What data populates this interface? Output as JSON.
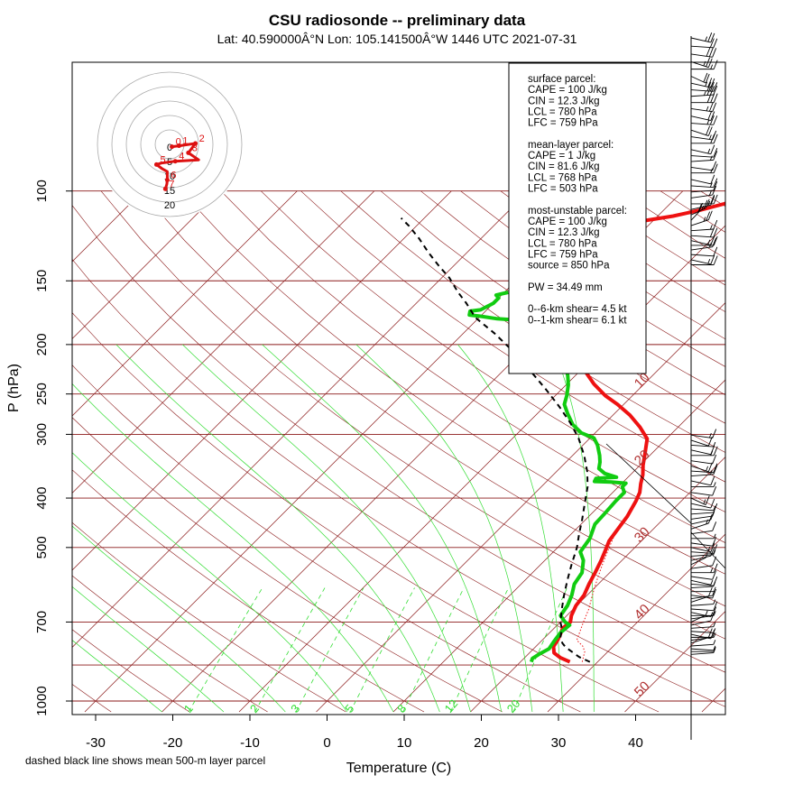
{
  "header": {
    "title": "CSU radiosonde -- preliminary data",
    "subtitle": "Lat: 40.590000Â°N Lon: 105.141500Â°W    1446 UTC  2021-07-31"
  },
  "footnote": "dashed black line shows mean 500-m layer parcel",
  "info_box": {
    "lines": [
      "surface parcel:",
      "CAPE = 100 J/kg",
      "CIN = 12.3 J/kg",
      "LCL = 780 hPa",
      "LFC = 759 hPa",
      "",
      "mean-layer parcel:",
      "CAPE = 1 J/kg",
      "CIN = 81.6 J/kg",
      "LCL = 768 hPa",
      "LFC = 503 hPa",
      "",
      "most-unstable parcel:",
      "CAPE = 100 J/kg",
      "CIN = 12.3 J/kg",
      "LCL = 780 hPa",
      "LFC = 759 hPa",
      "source = 850 hPa",
      "",
      "PW =  34.49 mm",
      "",
      "0--6-km shear= 4.5 kt",
      "0--1-km shear= 6.1 kt"
    ]
  },
  "colors": {
    "isobar": "#8b1a1a",
    "isotherm": "#8b1a1a",
    "dry_adiabat": "#ee3333",
    "moist_adiabat": "#33dd33",
    "temperature": "#ee1111",
    "dewpoint": "#11cc11",
    "parcel": "#000000",
    "hodograph": "#dd1111"
  },
  "chart_data": {
    "type": "skew-t",
    "xlabel": "Temperature (C)",
    "ylabel": "P (hPa)",
    "x_ticks": [
      -30,
      -20,
      -10,
      0,
      10,
      20,
      30,
      40
    ],
    "xlim": [
      -33,
      46
    ],
    "y_scale": "log",
    "ylim": [
      1050,
      100
    ],
    "p_tick_labels": [
      1000,
      700,
      500,
      400,
      300,
      250,
      200,
      150,
      100
    ],
    "isobars": [
      1000,
      850,
      700,
      500,
      400,
      300,
      250,
      200,
      150,
      100
    ],
    "isotherm_labels": [
      0,
      10,
      20,
      30,
      40,
      50
    ],
    "mixing_ratio_labels": [
      "1",
      "2",
      "3",
      "5",
      "8",
      "12",
      "20"
    ],
    "series": [
      {
        "key": "temperature",
        "points": [
          [
            26.4,
            838
          ],
          [
            24.6,
            822
          ],
          [
            23.2,
            805
          ],
          [
            22.3,
            782
          ],
          [
            22.0,
            760
          ],
          [
            21.6,
            740
          ],
          [
            21.1,
            720
          ],
          [
            21.3,
            700
          ],
          [
            20.6,
            680
          ],
          [
            19.9,
            650
          ],
          [
            19.6,
            620
          ],
          [
            18.8,
            590
          ],
          [
            18.1,
            560
          ],
          [
            17.3,
            530
          ],
          [
            16.5,
            505
          ],
          [
            15.8,
            485
          ],
          [
            15.4,
            460
          ],
          [
            15.0,
            435
          ],
          [
            14.1,
            405
          ],
          [
            13.5,
            390
          ],
          [
            12.5,
            375
          ],
          [
            11.6,
            360
          ],
          [
            10.4,
            345
          ],
          [
            9.2,
            328
          ],
          [
            7.5,
            306
          ],
          [
            5.0,
            290
          ],
          [
            2.2,
            275
          ],
          [
            -0.8,
            262
          ],
          [
            -3.5,
            252
          ],
          [
            -6.5,
            239
          ],
          [
            -9.0,
            227
          ],
          [
            -11.6,
            217
          ],
          [
            -14.0,
            207
          ],
          [
            -15.0,
            195
          ],
          [
            -16.8,
            186
          ],
          [
            -17.8,
            174
          ],
          [
            -18.6,
            166
          ],
          [
            -19.6,
            157
          ],
          [
            -20.0,
            150
          ],
          [
            -20.4,
            145
          ],
          [
            -21.0,
            140
          ],
          [
            -21.7,
            135
          ],
          [
            -22.4,
            130
          ],
          [
            -23.0,
            125
          ],
          [
            -23.5,
            120
          ],
          [
            -22.9,
            116
          ],
          [
            -20.7,
            114
          ],
          [
            -18.0,
            112
          ],
          [
            -15.3,
            109
          ],
          [
            -13.0,
            106
          ],
          [
            -11.0,
            103
          ],
          [
            -9.5,
            100
          ]
        ]
      },
      {
        "key": "dewpoint",
        "points": [
          [
            21.4,
            838
          ],
          [
            21.1,
            825
          ],
          [
            21.4,
            810
          ],
          [
            22.0,
            790
          ],
          [
            21.7,
            765
          ],
          [
            21.4,
            735
          ],
          [
            21.6,
            710
          ],
          [
            20.6,
            700
          ],
          [
            19.2,
            680
          ],
          [
            18.8,
            650
          ],
          [
            18.0,
            620
          ],
          [
            16.9,
            590
          ],
          [
            16.4,
            560
          ],
          [
            15.0,
            530
          ],
          [
            13.5,
            510
          ],
          [
            13.0,
            480
          ],
          [
            11.8,
            450
          ],
          [
            11.7,
            430
          ],
          [
            11.5,
            405
          ],
          [
            11.5,
            390
          ],
          [
            10.5,
            380
          ],
          [
            10.5,
            374
          ],
          [
            8.4,
            372
          ],
          [
            6.2,
            371
          ],
          [
            6.0,
            366
          ],
          [
            8.5,
            364
          ],
          [
            6.5,
            358
          ],
          [
            5.1,
            350
          ],
          [
            4.4,
            340
          ],
          [
            3.5,
            330
          ],
          [
            1.9,
            315
          ],
          [
            0.5,
            305
          ],
          [
            -1.8,
            298
          ],
          [
            -4.0,
            287
          ],
          [
            -6.1,
            273
          ],
          [
            -7.7,
            262
          ],
          [
            -8.5,
            252
          ],
          [
            -9.7,
            240
          ],
          [
            -11.0,
            230
          ],
          [
            -12.6,
            220
          ],
          [
            -13.4,
            210
          ],
          [
            -14.9,
            200
          ],
          [
            -15.6,
            190
          ],
          [
            -16.2,
            184
          ],
          [
            -17.6,
            182
          ],
          [
            -22.6,
            180
          ],
          [
            -27.5,
            178
          ],
          [
            -30.0,
            176
          ],
          [
            -31.6,
            175
          ],
          [
            -32.0,
            172
          ],
          [
            -30.8,
            171
          ],
          [
            -30.0,
            166
          ],
          [
            -30.0,
            162
          ],
          [
            -30.7,
            160
          ],
          [
            -29.5,
            158
          ]
        ]
      },
      {
        "key": "dewpoint_upper",
        "points": [
          [
            -29.5,
            127
          ],
          [
            -29.3,
            122
          ],
          [
            -28.5,
            118
          ],
          [
            -28.5,
            114
          ],
          [
            -28.3,
            110
          ],
          [
            -27.8,
            107
          ],
          [
            -27.5,
            104
          ],
          [
            -26.2,
            102
          ],
          [
            -25.8,
            100
          ]
        ]
      },
      {
        "key": "parcel",
        "points": [
          [
            29.0,
            838
          ],
          [
            27.0,
            820
          ],
          [
            25.3,
            800
          ],
          [
            24.0,
            785
          ],
          [
            23.0,
            770
          ],
          [
            22.0,
            750
          ],
          [
            21.0,
            720
          ],
          [
            20.0,
            700
          ],
          [
            18.5,
            660
          ],
          [
            17.0,
            620
          ],
          [
            15.5,
            580
          ],
          [
            14.0,
            540
          ],
          [
            12.5,
            500
          ],
          [
            11.0,
            470
          ],
          [
            9.5,
            440
          ],
          [
            7.8,
            410
          ],
          [
            6.0,
            380
          ],
          [
            4.0,
            355
          ],
          [
            1.5,
            330
          ],
          [
            -1.5,
            305
          ],
          [
            -4.5,
            285
          ],
          [
            -8.0,
            265
          ],
          [
            -12.0,
            245
          ],
          [
            -16.5,
            225
          ],
          [
            -21.0,
            207
          ],
          [
            -26.0,
            190
          ],
          [
            -30.5,
            177
          ],
          [
            -33.5,
            166
          ],
          [
            -36.0,
            158
          ],
          [
            -39.0,
            148
          ],
          [
            -42.0,
            140
          ],
          [
            -45.0,
            132
          ],
          [
            -48.0,
            124
          ],
          [
            -51.0,
            117
          ],
          [
            -53.0,
            113
          ]
        ]
      }
    ],
    "virtual_temperature_points": [
      [
        28.0,
        838
      ],
      [
        27.0,
        800
      ],
      [
        26.0,
        780
      ],
      [
        24.5,
        760
      ],
      [
        23.5,
        720
      ],
      [
        23.0,
        700
      ],
      [
        22.0,
        660
      ],
      [
        21.0,
        630
      ],
      [
        20.0,
        600
      ],
      [
        19.0,
        570
      ],
      [
        18.0,
        540
      ],
      [
        17.0,
        510
      ],
      [
        16.0,
        480
      ],
      [
        15.0,
        450
      ]
    ],
    "hodograph": {
      "ring_labels": [
        "0",
        "5",
        "10",
        "15",
        "20"
      ],
      "point_labels": [
        "0",
        "1",
        "2",
        "3",
        "4",
        "5",
        "6",
        "7"
      ],
      "path": [
        [
          0.5,
          -0.5
        ],
        [
          2.0,
          -0.3
        ],
        [
          5.5,
          0.2
        ],
        [
          4.0,
          -1.8
        ],
        [
          6.2,
          -3.3
        ],
        [
          1.2,
          -3.6
        ],
        [
          -1.8,
          -4.0
        ],
        [
          -2.8,
          -4.3
        ],
        [
          -1.6,
          -5.2
        ],
        [
          -0.5,
          -5.8
        ],
        [
          -0.5,
          -7.6
        ],
        [
          -0.6,
          -8.5
        ],
        [
          -0.9,
          -9.5
        ]
      ]
    },
    "wind_barbs": {
      "levels_hpa": [
        100,
        104,
        108,
        112,
        116,
        120,
        124,
        128,
        132,
        136,
        140,
        145,
        150,
        155,
        160,
        165,
        170,
        175,
        180,
        185,
        190,
        196,
        202,
        208,
        214,
        220,
        226,
        232,
        238,
        244,
        250,
        256,
        262,
        268,
        274,
        280,
        287,
        294,
        301,
        308,
        315,
        322,
        330,
        338,
        346,
        354,
        362,
        370,
        380,
        390,
        400,
        410,
        420,
        430,
        440,
        450,
        460,
        470,
        480,
        490,
        500,
        510,
        520,
        530,
        540,
        550,
        560,
        570,
        580,
        590,
        600,
        610,
        620,
        630,
        640,
        650,
        660,
        670,
        680,
        690,
        700,
        710,
        720,
        730,
        740,
        750,
        760,
        770,
        780,
        790,
        800,
        810
      ],
      "speed_kt": [
        25,
        20,
        30,
        25,
        15,
        20,
        25,
        30,
        35,
        30,
        25,
        20,
        25,
        20,
        15,
        20,
        15,
        10,
        15,
        10,
        15,
        10,
        15,
        10,
        15,
        20,
        15,
        25,
        20,
        25,
        15,
        20,
        15,
        10,
        15,
        10,
        15,
        10,
        15,
        10,
        5,
        10,
        15,
        10,
        15,
        10,
        15,
        10,
        5,
        10,
        15,
        10,
        5,
        10,
        5,
        10,
        15,
        10,
        5,
        10,
        15,
        10,
        5,
        10,
        5,
        10,
        15,
        10,
        5,
        10,
        5,
        5,
        10,
        5,
        10,
        5,
        10,
        5,
        5,
        10,
        5,
        10,
        5,
        5,
        10,
        5,
        5,
        10,
        5,
        5,
        5,
        5
      ],
      "direction_deg": [
        300,
        280,
        290,
        310,
        270,
        320,
        300,
        280,
        260,
        270,
        290,
        300,
        280,
        310,
        290,
        270,
        300,
        280,
        260,
        290,
        270,
        300,
        280,
        260,
        250,
        270,
        240,
        220,
        200,
        230,
        260,
        280,
        300,
        270,
        250,
        280,
        300,
        270,
        290,
        310,
        280,
        300,
        270,
        290,
        310,
        280,
        260,
        300,
        270,
        290,
        320,
        300,
        280,
        260,
        250,
        240,
        230,
        250,
        270,
        290,
        300,
        280,
        260,
        240,
        220,
        250,
        270,
        290,
        300,
        280,
        260,
        270,
        290,
        250,
        230,
        260,
        280,
        300,
        270,
        250,
        220,
        240,
        260,
        280,
        300,
        270,
        250,
        230,
        260,
        280,
        270,
        260
      ]
    }
  }
}
